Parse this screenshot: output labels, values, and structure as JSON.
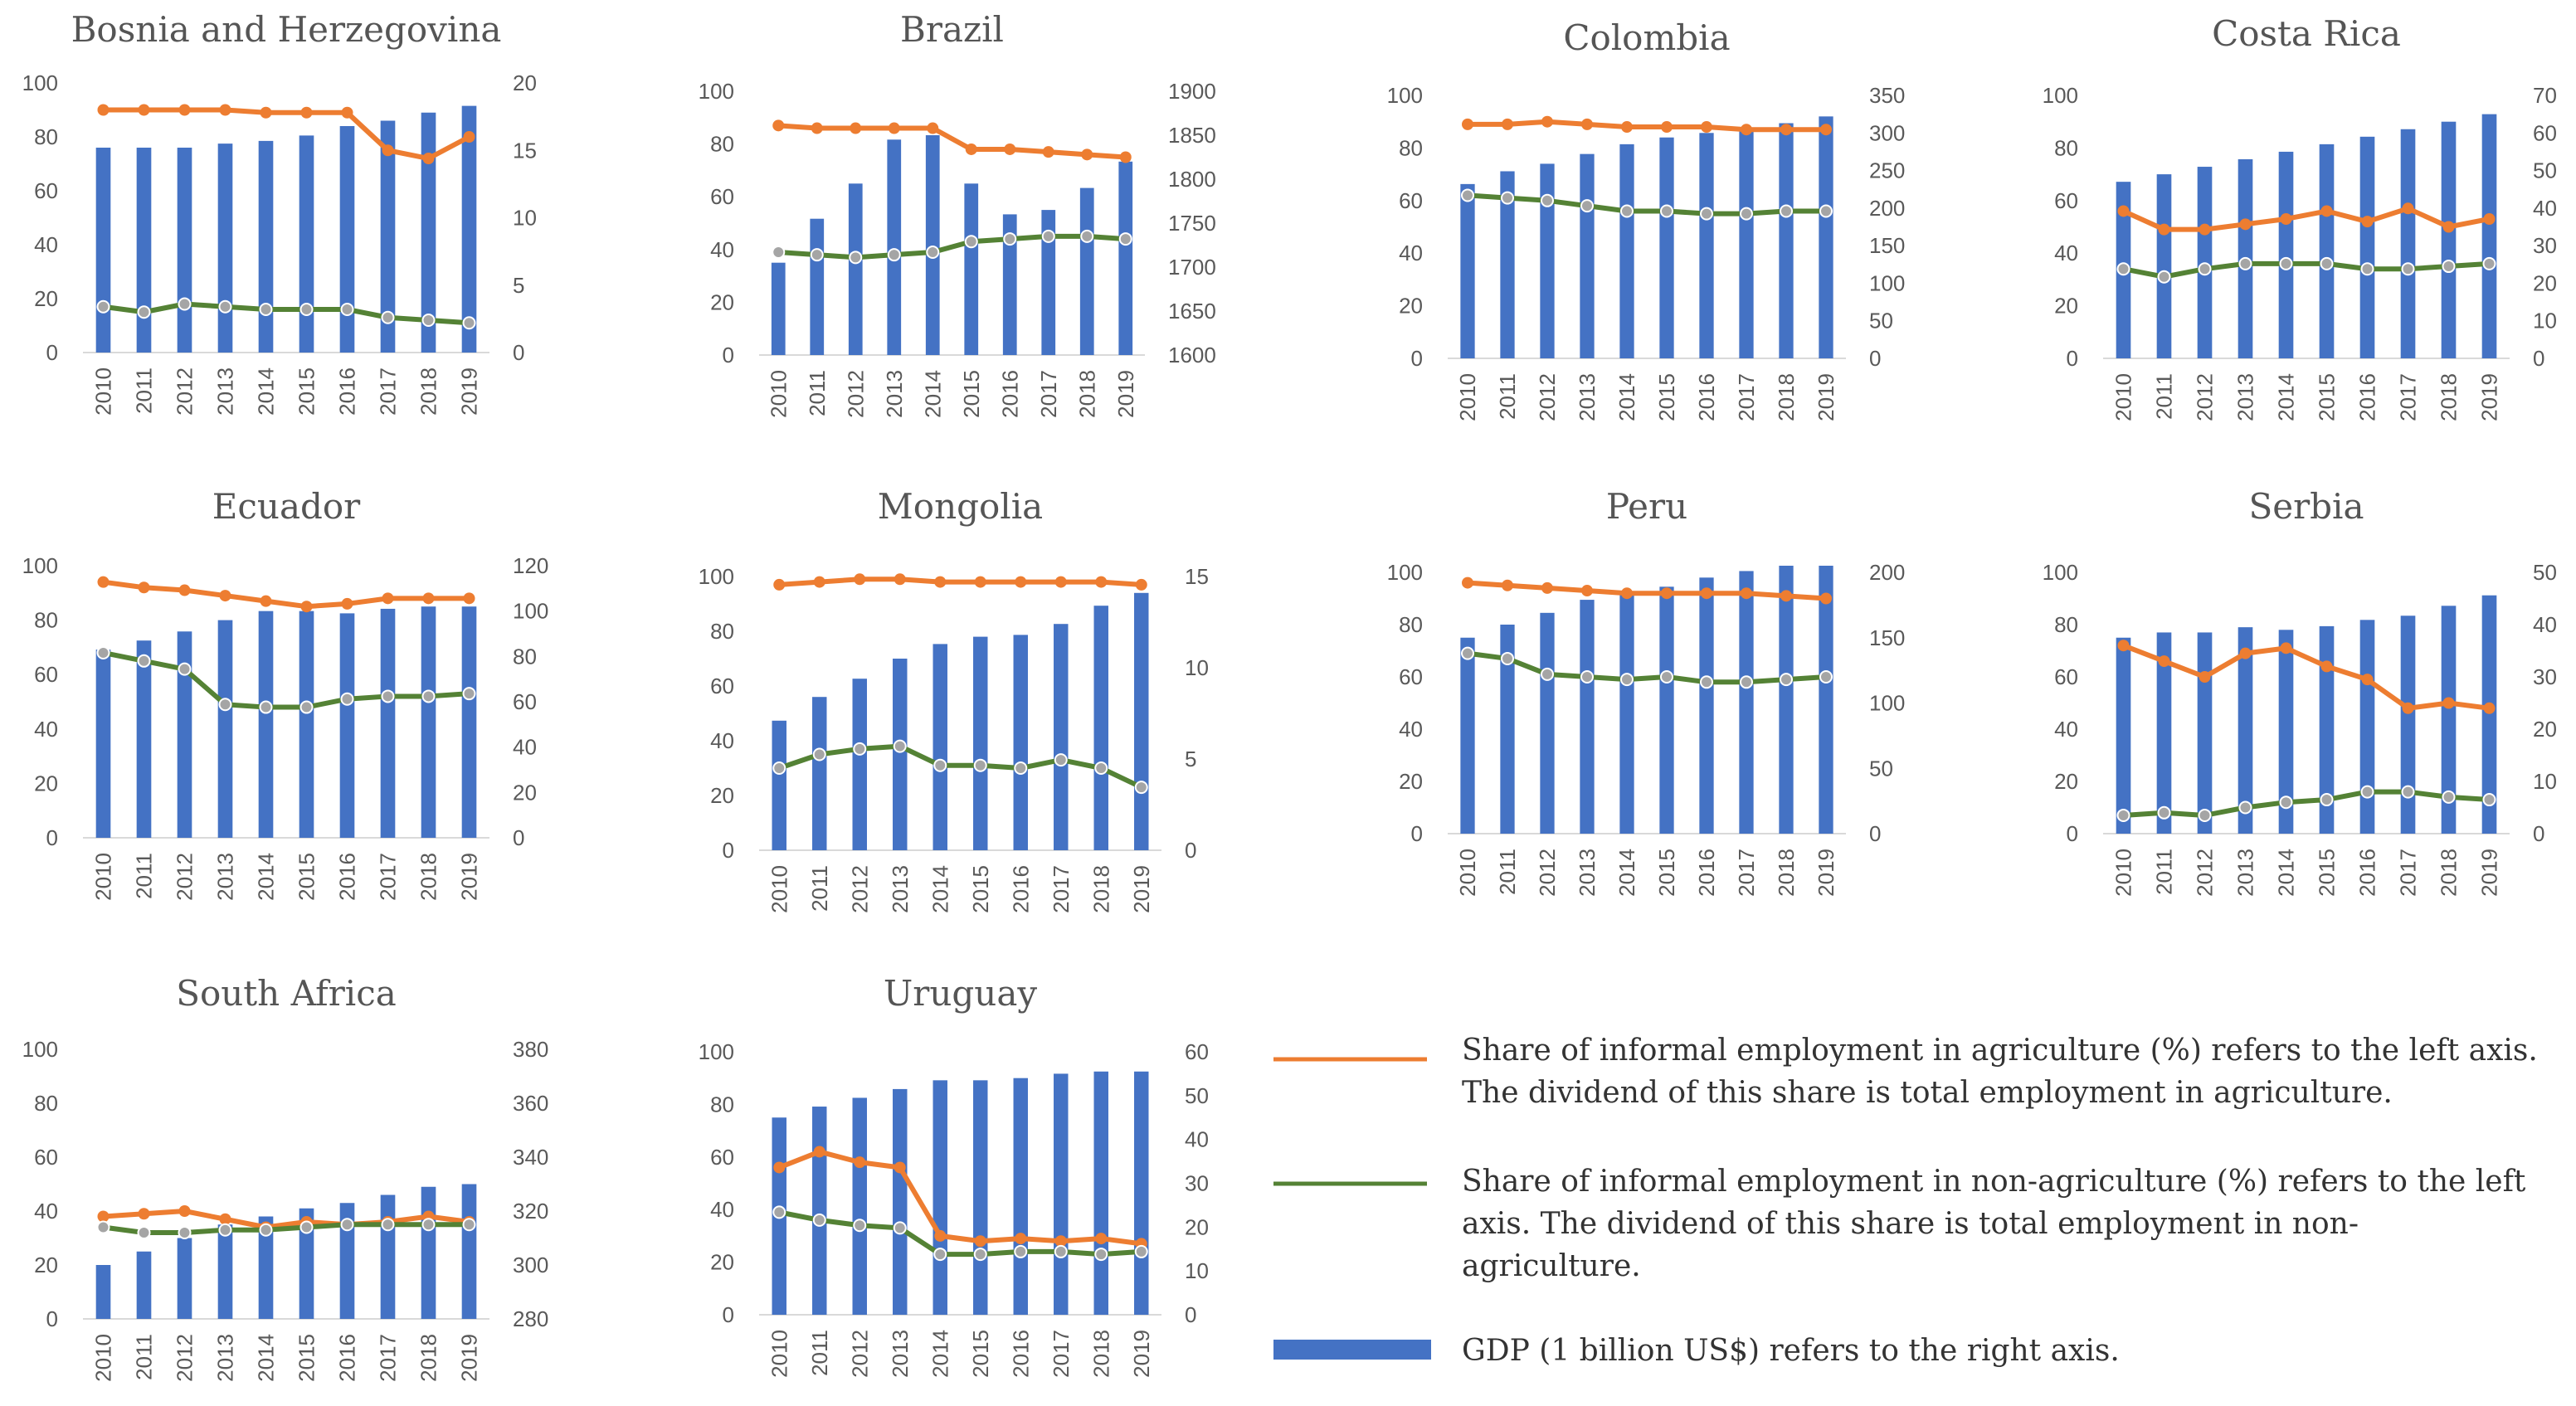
{
  "chart_data": [
    {
      "type": "bar",
      "title": "Bosnia and Herzegovina",
      "categories": [
        "2010",
        "2011",
        "2012",
        "2013",
        "2014",
        "2015",
        "2016",
        "2017",
        "2018",
        "2019"
      ],
      "left_ylim": [
        0,
        100
      ],
      "left_ticks": [
        0,
        20,
        40,
        60,
        80,
        100
      ],
      "right_ylim": [
        0,
        20
      ],
      "right_ticks": [
        0,
        5,
        10,
        15,
        20
      ],
      "series": [
        {
          "name": "GDP (1 billion US$)",
          "axis": "right",
          "kind": "bar",
          "values": [
            15.2,
            15.2,
            15.2,
            15.5,
            15.7,
            16.1,
            16.8,
            17.2,
            17.8,
            18.3
          ]
        },
        {
          "name": "Share of informal employment in agriculture (%)",
          "axis": "left",
          "kind": "line",
          "values": [
            90,
            90,
            90,
            90,
            89,
            89,
            89,
            75,
            72,
            80
          ]
        },
        {
          "name": "Share of informal employment in non-agriculture (%)",
          "axis": "left",
          "kind": "line",
          "values": [
            17,
            15,
            18,
            17,
            16,
            16,
            16,
            13,
            12,
            11
          ]
        }
      ]
    },
    {
      "type": "bar",
      "title": "Brazil",
      "categories": [
        "2010",
        "2011",
        "2012",
        "2013",
        "2014",
        "2015",
        "2016",
        "2017",
        "2018",
        "2019"
      ],
      "left_ylim": [
        0,
        100
      ],
      "left_ticks": [
        0,
        20,
        40,
        60,
        80,
        100
      ],
      "right_ylim": [
        1600,
        1900
      ],
      "right_ticks": [
        1600,
        1650,
        1700,
        1750,
        1800,
        1850,
        1900
      ],
      "series": [
        {
          "name": "GDP (1 billion US$)",
          "axis": "right",
          "kind": "bar",
          "values": [
            1705,
            1755,
            1795,
            1845,
            1850,
            1795,
            1760,
            1765,
            1790,
            1820
          ]
        },
        {
          "name": "Share of informal employment in agriculture (%)",
          "axis": "left",
          "kind": "line",
          "values": [
            87,
            86,
            86,
            86,
            86,
            78,
            78,
            77,
            76,
            75
          ]
        },
        {
          "name": "Share of informal employment in non-agriculture (%)",
          "axis": "left",
          "kind": "line",
          "values": [
            39,
            38,
            37,
            38,
            39,
            43,
            44,
            45,
            45,
            44
          ]
        }
      ]
    },
    {
      "type": "bar",
      "title": "Colombia",
      "categories": [
        "2010",
        "2011",
        "2012",
        "2013",
        "2014",
        "2015",
        "2016",
        "2017",
        "2018",
        "2019"
      ],
      "left_ylim": [
        0,
        100
      ],
      "left_ticks": [
        0,
        20,
        40,
        60,
        80,
        100
      ],
      "right_ylim": [
        0,
        350
      ],
      "right_ticks": [
        0,
        50,
        100,
        150,
        200,
        250,
        300,
        350
      ],
      "series": [
        {
          "name": "GDP (1 billion US$)",
          "axis": "right",
          "kind": "bar",
          "values": [
            232,
            249,
            259,
            272,
            285,
            294,
            300,
            305,
            313,
            322
          ]
        },
        {
          "name": "Share of informal employment in agriculture (%)",
          "axis": "left",
          "kind": "line",
          "values": [
            89,
            89,
            90,
            89,
            88,
            88,
            88,
            87,
            87,
            87
          ]
        },
        {
          "name": "Share of informal employment in non-agriculture (%)",
          "axis": "left",
          "kind": "line",
          "values": [
            62,
            61,
            60,
            58,
            56,
            56,
            55,
            55,
            56,
            56
          ]
        }
      ]
    },
    {
      "type": "bar",
      "title": "Costa Rica",
      "categories": [
        "2010",
        "2011",
        "2012",
        "2013",
        "2014",
        "2015",
        "2016",
        "2017",
        "2018",
        "2019"
      ],
      "left_ylim": [
        0,
        100
      ],
      "left_ticks": [
        0,
        20,
        40,
        60,
        80,
        100
      ],
      "right_ylim": [
        0,
        70
      ],
      "right_ticks": [
        0,
        10,
        20,
        30,
        40,
        50,
        60,
        70
      ],
      "series": [
        {
          "name": "GDP (1 billion US$)",
          "axis": "right",
          "kind": "bar",
          "values": [
            47,
            49,
            51,
            53,
            55,
            57,
            59,
            61,
            63,
            65
          ]
        },
        {
          "name": "Share of informal employment in agriculture (%)",
          "axis": "left",
          "kind": "line",
          "values": [
            56,
            49,
            49,
            51,
            53,
            56,
            52,
            57,
            50,
            53
          ]
        },
        {
          "name": "Share of informal employment in non-agriculture (%)",
          "axis": "left",
          "kind": "line",
          "values": [
            34,
            31,
            34,
            36,
            36,
            36,
            34,
            34,
            35,
            36
          ]
        }
      ]
    },
    {
      "type": "bar",
      "title": "Ecuador",
      "categories": [
        "2010",
        "2011",
        "2012",
        "2013",
        "2014",
        "2015",
        "2016",
        "2017",
        "2018",
        "2019"
      ],
      "left_ylim": [
        0,
        100
      ],
      "left_ticks": [
        0,
        20,
        40,
        60,
        80,
        100
      ],
      "right_ylim": [
        0,
        120
      ],
      "right_ticks": [
        0,
        20,
        40,
        60,
        80,
        100,
        120
      ],
      "series": [
        {
          "name": "GDP (1 billion US$)",
          "axis": "right",
          "kind": "bar",
          "values": [
            83,
            87,
            91,
            96,
            100,
            100,
            99,
            101,
            102,
            102
          ]
        },
        {
          "name": "Share of informal employment in agriculture (%)",
          "axis": "left",
          "kind": "line",
          "values": [
            94,
            92,
            91,
            89,
            87,
            85,
            86,
            88,
            88,
            88
          ]
        },
        {
          "name": "Share of informal employment in non-agriculture (%)",
          "axis": "left",
          "kind": "line",
          "values": [
            68,
            65,
            62,
            49,
            48,
            48,
            51,
            52,
            52,
            53
          ]
        }
      ]
    },
    {
      "type": "bar",
      "title": "Mongolia",
      "categories": [
        "2010",
        "2011",
        "2012",
        "2013",
        "2014",
        "2015",
        "2016",
        "2017",
        "2018",
        "2019"
      ],
      "left_ylim": [
        0,
        100
      ],
      "left_ticks": [
        0,
        20,
        40,
        60,
        80,
        100
      ],
      "right_ylim": [
        0,
        15
      ],
      "right_ticks": [
        0,
        5,
        10,
        15
      ],
      "series": [
        {
          "name": "GDP (1 billion US$)",
          "axis": "right",
          "kind": "bar",
          "values": [
            7.1,
            8.4,
            9.4,
            10.5,
            11.3,
            11.7,
            11.8,
            12.4,
            13.4,
            14.1
          ]
        },
        {
          "name": "Share of informal employment in agriculture (%)",
          "axis": "left",
          "kind": "line",
          "values": [
            97,
            98,
            99,
            99,
            98,
            98,
            98,
            98,
            98,
            97
          ]
        },
        {
          "name": "Share of informal employment in non-agriculture (%)",
          "axis": "left",
          "kind": "line",
          "values": [
            30,
            35,
            37,
            38,
            31,
            31,
            30,
            33,
            30,
            23
          ]
        }
      ]
    },
    {
      "type": "bar",
      "title": "Peru",
      "categories": [
        "2010",
        "2011",
        "2012",
        "2013",
        "2014",
        "2015",
        "2016",
        "2017",
        "2018",
        "2019"
      ],
      "left_ylim": [
        0,
        100
      ],
      "left_ticks": [
        0,
        20,
        40,
        60,
        80,
        100
      ],
      "right_ylim": [
        0,
        200
      ],
      "right_ticks": [
        0,
        50,
        100,
        150,
        200
      ],
      "series": [
        {
          "name": "GDP (1 billion US$)",
          "axis": "right",
          "kind": "bar",
          "values": [
            150,
            160,
            169,
            179,
            183,
            189,
            196,
            201,
            208,
            212
          ]
        },
        {
          "name": "Share of informal employment in agriculture (%)",
          "axis": "left",
          "kind": "line",
          "values": [
            96,
            95,
            94,
            93,
            92,
            92,
            92,
            92,
            91,
            90
          ]
        },
        {
          "name": "Share of informal employment in non-agriculture (%)",
          "axis": "left",
          "kind": "line",
          "values": [
            69,
            67,
            61,
            60,
            59,
            60,
            58,
            58,
            59,
            60
          ]
        }
      ]
    },
    {
      "type": "bar",
      "title": "Serbia",
      "categories": [
        "2010",
        "2011",
        "2012",
        "2013",
        "2014",
        "2015",
        "2016",
        "2017",
        "2018",
        "2019"
      ],
      "left_ylim": [
        0,
        100
      ],
      "left_ticks": [
        0,
        20,
        40,
        60,
        80,
        100
      ],
      "right_ylim": [
        0,
        50
      ],
      "right_ticks": [
        0,
        10,
        20,
        30,
        40,
        50
      ],
      "series": [
        {
          "name": "GDP (1 billion US$)",
          "axis": "right",
          "kind": "bar",
          "values": [
            37.5,
            38.5,
            38.5,
            39.5,
            39,
            39.7,
            40.9,
            41.7,
            43.6,
            45.6
          ]
        },
        {
          "name": "Share of informal employment in agriculture (%)",
          "axis": "left",
          "kind": "line",
          "values": [
            72,
            66,
            60,
            69,
            71,
            64,
            59,
            48,
            50,
            48
          ]
        },
        {
          "name": "Share of informal employment in non-agriculture (%)",
          "axis": "left",
          "kind": "line",
          "values": [
            7,
            8,
            7,
            10,
            12,
            13,
            16,
            16,
            14,
            13
          ]
        }
      ]
    },
    {
      "type": "bar",
      "title": "South Africa",
      "categories": [
        "2010",
        "2011",
        "2012",
        "2013",
        "2014",
        "2015",
        "2016",
        "2017",
        "2018",
        "2019"
      ],
      "left_ylim": [
        0,
        100
      ],
      "left_ticks": [
        0,
        20,
        40,
        60,
        80,
        100
      ],
      "right_ylim": [
        280,
        380
      ],
      "right_ticks": [
        280,
        300,
        320,
        340,
        360,
        380
      ],
      "series": [
        {
          "name": "GDP (1 billion US$)",
          "axis": "right",
          "kind": "bar",
          "values": [
            300,
            305,
            310,
            315,
            318,
            321,
            323,
            326,
            329,
            330
          ]
        },
        {
          "name": "Share of informal employment in agriculture (%)",
          "axis": "left",
          "kind": "line",
          "values": [
            38,
            39,
            40,
            37,
            34,
            36,
            35,
            36,
            38,
            36
          ]
        },
        {
          "name": "Share of informal employment in non-agriculture (%)",
          "axis": "left",
          "kind": "line",
          "values": [
            34,
            32,
            32,
            33,
            33,
            34,
            35,
            35,
            35,
            35
          ]
        }
      ]
    },
    {
      "type": "bar",
      "title": "Uruguay",
      "categories": [
        "2010",
        "2011",
        "2012",
        "2013",
        "2014",
        "2015",
        "2016",
        "2017",
        "2018",
        "2019"
      ],
      "left_ylim": [
        0,
        100
      ],
      "left_ticks": [
        0,
        20,
        40,
        60,
        80,
        100
      ],
      "right_ylim": [
        0,
        60
      ],
      "right_ticks": [
        0,
        10,
        20,
        30,
        40,
        50,
        60
      ],
      "series": [
        {
          "name": "GDP (1 billion US$)",
          "axis": "right",
          "kind": "bar",
          "values": [
            45,
            47.5,
            49.5,
            51.5,
            53.5,
            53.5,
            54,
            55,
            55.5,
            55.5
          ]
        },
        {
          "name": "Share of informal employment in agriculture (%)",
          "axis": "left",
          "kind": "line",
          "values": [
            56,
            62,
            58,
            56,
            30,
            28,
            29,
            28,
            29,
            27
          ]
        },
        {
          "name": "Share of informal employment in non-agriculture (%)",
          "axis": "left",
          "kind": "line",
          "values": [
            39,
            36,
            34,
            33,
            23,
            23,
            24,
            24,
            23,
            24
          ]
        }
      ]
    }
  ],
  "legend": {
    "items": [
      {
        "key": "agri",
        "color": "#ED7D31",
        "lines": [
          "Share of informal employment  in agriculture (%) refers to the left axis.",
          "The dividend  of this share is total employment  in agriculture."
        ]
      },
      {
        "key": "non",
        "color": "#548235",
        "lines": [
          "Share of informal employment  in non-agriculture  (%) refers to the left",
          "axis. The dividend  of this share is total employment  in non-",
          "agriculture."
        ]
      },
      {
        "key": "gdp",
        "color": "#4472C4",
        "lines": [
          "GDP (1 billion US$) refers to the right axis."
        ]
      }
    ]
  }
}
